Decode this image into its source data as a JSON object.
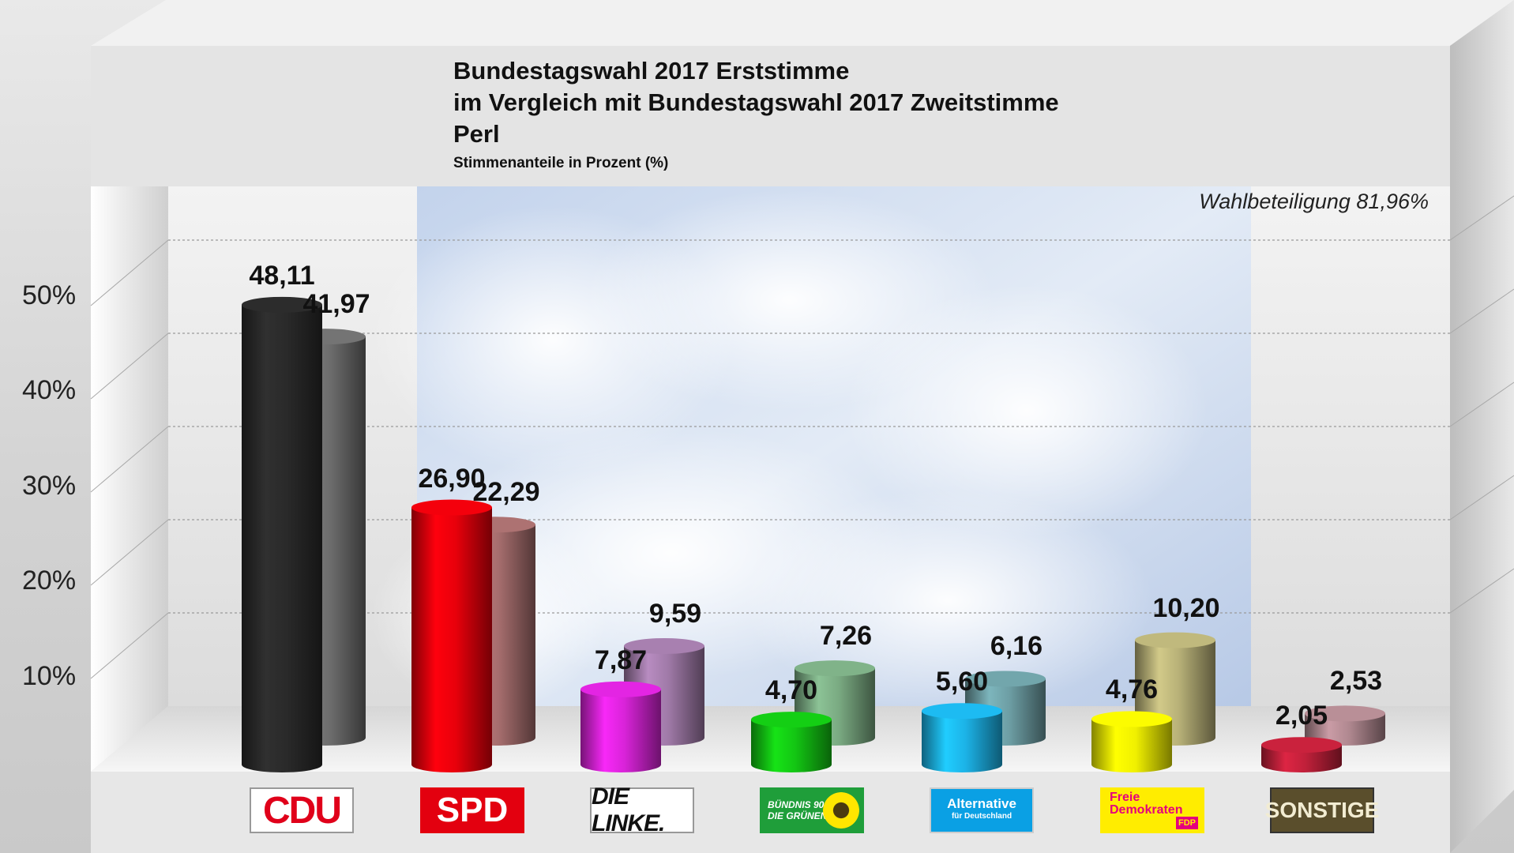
{
  "title_lines": [
    "Bundestagswahl 2017 Erststimme",
    "im Vergleich mit Bundestagswahl 2017 Zweitstimme",
    "Perl"
  ],
  "subtitle": "Stimmenanteile in Prozent (%)",
  "turnout": "Wahlbeteiligung 81,96%",
  "y_ticks": [
    "10%",
    "20%",
    "30%",
    "40%",
    "50%"
  ],
  "logos": {
    "cdu": "CDU",
    "spd": "SPD",
    "linke": "DIE LINKE.",
    "gruene_1": "BÜNDNIS 90",
    "gruene_2": "DIE GRÜNEN",
    "afd_1": "Alternative",
    "afd_2": "für Deutschland",
    "fdp_1": "Freie",
    "fdp_2": "Demokraten",
    "fdp_3": "FDP",
    "sonstige": "SONSTIGE"
  },
  "colors": {
    "cdu": [
      "#2a2a2a",
      "#6e6e6e"
    ],
    "spd": [
      "#e8000b",
      "#a56d6d"
    ],
    "linke": [
      "#d823d8",
      "#a07aa8"
    ],
    "gruene": [
      "#13c513",
      "#7aaa82"
    ],
    "afd": [
      "#1cb2e6",
      "#6d9ea4"
    ],
    "fdp": [
      "#f0f000",
      "#b7b077"
    ],
    "sonstige": [
      "#c0203a",
      "#b08890"
    ]
  },
  "chart_data": {
    "type": "bar",
    "categories": [
      "CDU",
      "SPD",
      "DIE LINKE.",
      "GRÜNE",
      "AfD",
      "FDP",
      "SONSTIGE"
    ],
    "series": [
      {
        "name": "Erststimme",
        "values": [
          48.11,
          26.9,
          7.87,
          4.7,
          5.6,
          4.76,
          2.05
        ]
      },
      {
        "name": "Zweitstimme",
        "values": [
          41.97,
          22.29,
          9.59,
          7.26,
          6.16,
          10.2,
          2.53
        ]
      }
    ],
    "value_labels": {
      "Erststimme": [
        "48,11",
        "26,90",
        "7,87",
        "4,70",
        "5,60",
        "4,76",
        "2,05"
      ],
      "Zweitstimme": [
        "41,97",
        "22,29",
        "9,59",
        "7,26",
        "6,16",
        "10,20",
        "2,53"
      ]
    },
    "ylim": [
      0,
      50
    ],
    "grid": true
  }
}
